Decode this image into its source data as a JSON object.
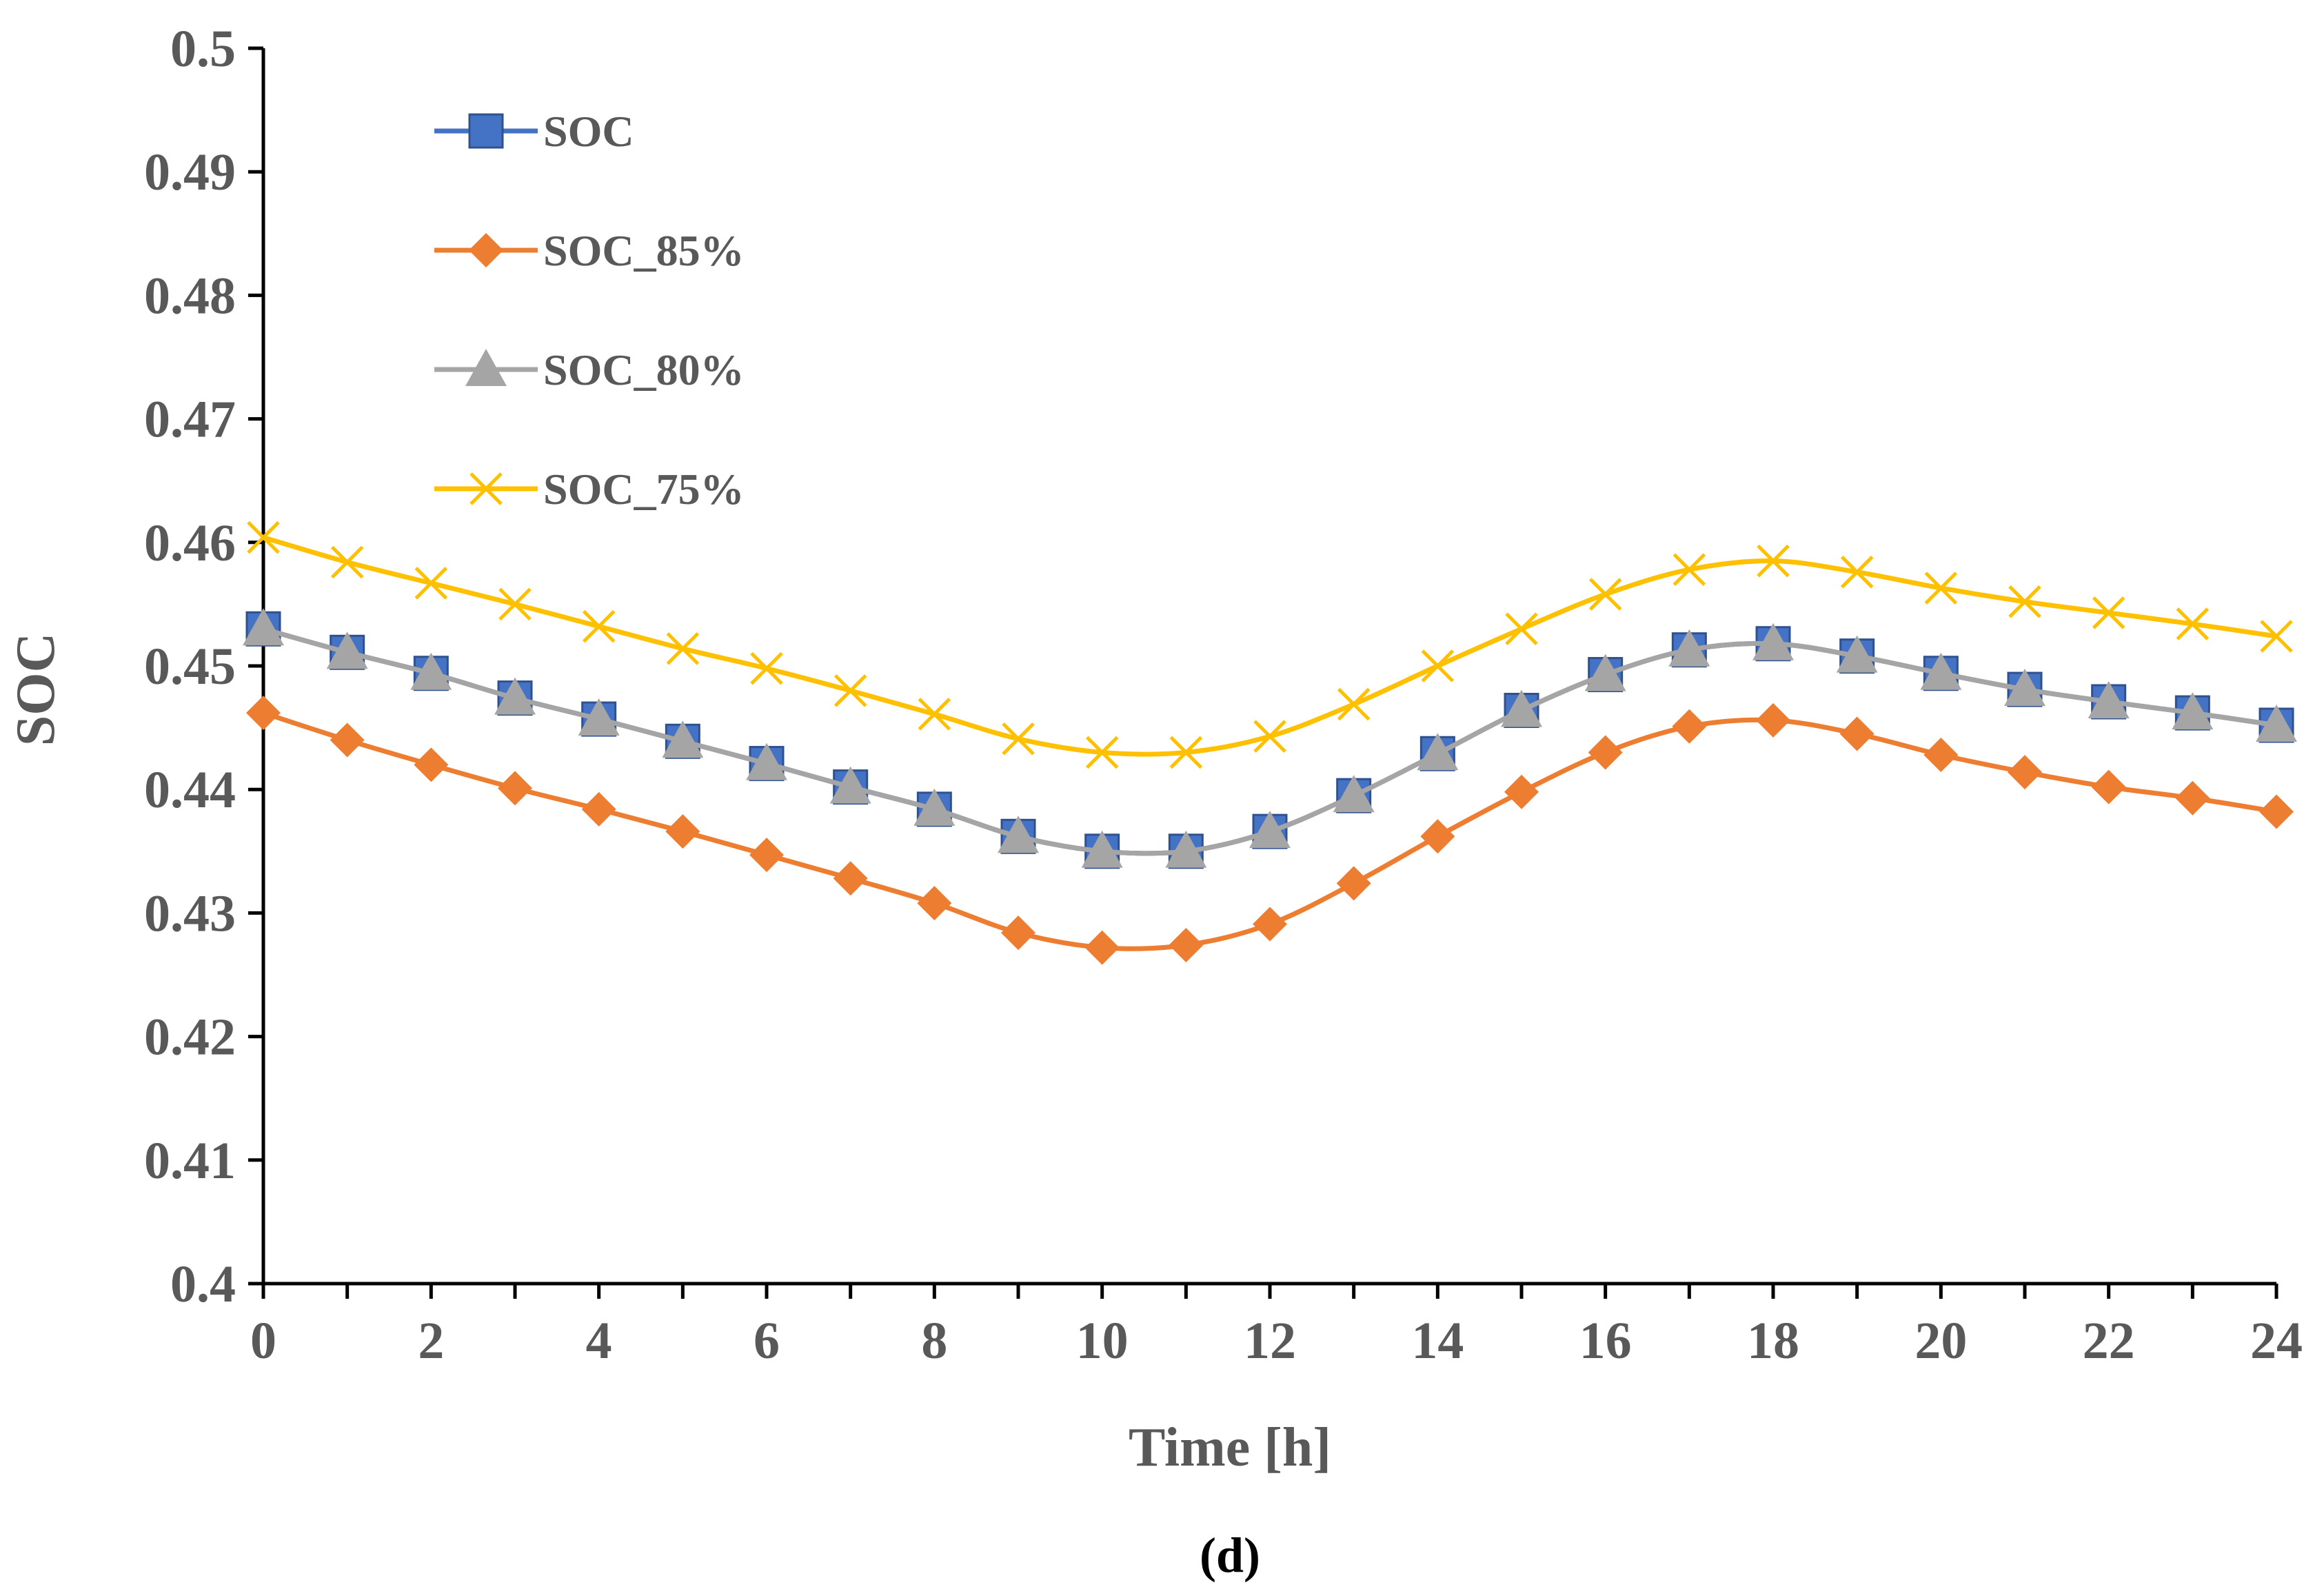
{
  "chart_data": {
    "type": "line",
    "title": "",
    "xlabel": "Time [h]",
    "ylabel": "SOC",
    "caption_open": "(",
    "caption_letter": "d",
    "caption_close": ")",
    "xlim": [
      0,
      24
    ],
    "ylim": [
      0.4,
      0.5
    ],
    "x_ticks": [
      0,
      2,
      4,
      6,
      8,
      10,
      12,
      14,
      16,
      18,
      20,
      22,
      24
    ],
    "y_ticks": [
      0.4,
      0.41,
      0.42,
      0.43,
      0.44,
      0.45,
      0.46,
      0.47,
      0.48,
      0.49,
      0.5
    ],
    "y_tick_labels": [
      "0.4",
      "0.41",
      "0.42",
      "0.43",
      "0.44",
      "0.45",
      "0.46",
      "0.47",
      "0.48",
      "0.49",
      "0.5"
    ],
    "grid": false,
    "legend_position": "top-left",
    "x": [
      0,
      1,
      2,
      3,
      4,
      5,
      6,
      7,
      8,
      9,
      10,
      11,
      12,
      13,
      14,
      15,
      16,
      17,
      18,
      19,
      20,
      21,
      22,
      23,
      24
    ],
    "series": [
      {
        "name": "SOC",
        "color": "#4472C4",
        "marker": "square",
        "values": [
          0.453,
          0.4511,
          0.4494,
          0.4474,
          0.4457,
          0.4439,
          0.4421,
          0.4402,
          0.4384,
          0.4362,
          0.435,
          0.435,
          0.4366,
          0.4395,
          0.4429,
          0.4464,
          0.4493,
          0.4513,
          0.4518,
          0.4508,
          0.4494,
          0.4481,
          0.4471,
          0.4462,
          0.4452
        ]
      },
      {
        "name": "SOC_85%",
        "color": "#ED7D31",
        "marker": "diamond",
        "values": [
          0.4462,
          0.444,
          0.442,
          0.4401,
          0.4384,
          0.4366,
          0.4347,
          0.4328,
          0.4308,
          0.4284,
          0.4272,
          0.4274,
          0.4291,
          0.4324,
          0.4362,
          0.4398,
          0.443,
          0.4451,
          0.4456,
          0.4445,
          0.4428,
          0.4414,
          0.4402,
          0.4393,
          0.4382
        ]
      },
      {
        "name": "SOC_80%",
        "color": "#A5A5A5",
        "marker": "triangle",
        "values": [
          0.453,
          0.4511,
          0.4494,
          0.4474,
          0.4457,
          0.4439,
          0.4421,
          0.4402,
          0.4384,
          0.4362,
          0.435,
          0.435,
          0.4366,
          0.4395,
          0.4429,
          0.4464,
          0.4493,
          0.4513,
          0.4518,
          0.4508,
          0.4494,
          0.4481,
          0.4471,
          0.4462,
          0.4452
        ]
      },
      {
        "name": "SOC_75%",
        "color": "#FFC000",
        "marker": "x",
        "values": [
          0.4604,
          0.4584,
          0.4567,
          0.455,
          0.4532,
          0.4514,
          0.4498,
          0.448,
          0.4461,
          0.4441,
          0.443,
          0.443,
          0.4443,
          0.4469,
          0.45,
          0.453,
          0.4558,
          0.4578,
          0.4585,
          0.4576,
          0.4563,
          0.4552,
          0.4543,
          0.4534,
          0.4524
        ]
      }
    ]
  }
}
